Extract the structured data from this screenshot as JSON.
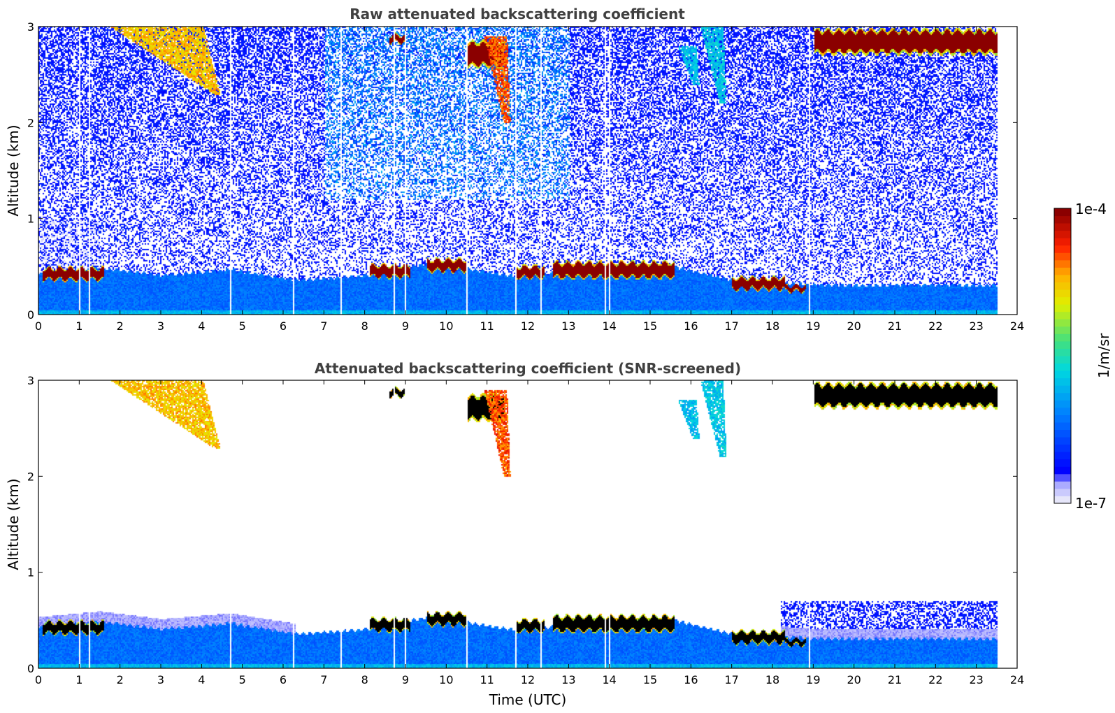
{
  "chart_data": {
    "type": "heatmap",
    "figure": "Ceilometer time-height backscatter plots",
    "panels": [
      {
        "id": "raw",
        "title": "Raw attenuated backscattering coefficient",
        "ylabel": "Altitude (km)",
        "xlabel": "",
        "xlim": [
          0,
          24
        ],
        "ylim": [
          0,
          3
        ],
        "xticks": [
          "0",
          "1",
          "2",
          "3",
          "4",
          "5",
          "6",
          "7",
          "8",
          "9",
          "10",
          "11",
          "12",
          "13",
          "14",
          "15",
          "16",
          "17",
          "18",
          "19",
          "20",
          "21",
          "22",
          "23",
          "24"
        ],
        "yticks": [
          "0",
          "1",
          "2",
          "3"
        ],
        "screened": false
      },
      {
        "id": "screened",
        "title": "Attenuated backscattering coefficient (SNR-screened)",
        "ylabel": "Altitude (km)",
        "xlabel": "Time (UTC)",
        "xlim": [
          0,
          24
        ],
        "ylim": [
          0,
          3
        ],
        "xticks": [
          "0",
          "1",
          "2",
          "3",
          "4",
          "5",
          "6",
          "7",
          "8",
          "9",
          "10",
          "11",
          "12",
          "13",
          "14",
          "15",
          "16",
          "17",
          "18",
          "19",
          "20",
          "21",
          "22",
          "23",
          "24"
        ],
        "yticks": [
          "0",
          "1",
          "2",
          "3"
        ],
        "screened": true
      }
    ],
    "data_end_hour": 23.5,
    "features": {
      "boundary_layer_top_km": [
        [
          0,
          0.42
        ],
        [
          1.5,
          0.48
        ],
        [
          3,
          0.4
        ],
        [
          4.7,
          0.46
        ],
        [
          6.3,
          0.35
        ],
        [
          7.5,
          0.38
        ],
        [
          8,
          0.4
        ],
        [
          9.5,
          0.52
        ],
        [
          10.5,
          0.47
        ],
        [
          11.5,
          0.4
        ],
        [
          12.5,
          0.42
        ],
        [
          13.5,
          0.48
        ],
        [
          15.5,
          0.5
        ],
        [
          16,
          0.45
        ],
        [
          17,
          0.35
        ],
        [
          18.3,
          0.32
        ],
        [
          19,
          0.3
        ],
        [
          23.5,
          0.3
        ]
      ],
      "cloud_layers": [
        {
          "t0": 0.1,
          "t1": 1.6,
          "z": 0.43,
          "thick": 0.12
        },
        {
          "t0": 8.1,
          "t1": 9.1,
          "z": 0.46,
          "thick": 0.12
        },
        {
          "t0": 9.5,
          "t1": 10.5,
          "z": 0.52,
          "thick": 0.12
        },
        {
          "t0": 11.7,
          "t1": 12.4,
          "z": 0.45,
          "thick": 0.12
        },
        {
          "t0": 12.6,
          "t1": 15.6,
          "z": 0.47,
          "thick": 0.16
        },
        {
          "t0": 17.0,
          "t1": 18.3,
          "z": 0.33,
          "thick": 0.12
        },
        {
          "t0": 18.3,
          "t1": 18.8,
          "z": 0.28,
          "thick": 0.06
        },
        {
          "t0": 10.5,
          "t1": 11.4,
          "z": 2.72,
          "thick": 0.26
        },
        {
          "t0": 8.6,
          "t1": 9.0,
          "z": 2.88,
          "thick": 0.08
        },
        {
          "t0": 19.0,
          "t1": 23.5,
          "z": 2.85,
          "thick": 0.25
        }
      ],
      "virga_streaks": [
        {
          "t0": 2.9,
          "t1": 5.0,
          "zTop": 3.0,
          "zBot": 2.3,
          "lvl": 0.75
        },
        {
          "t0": 11.2,
          "t1": 11.6,
          "zTop": 2.9,
          "zBot": 2.0,
          "lvl": 0.85
        },
        {
          "t0": 16.5,
          "t1": 16.9,
          "zTop": 3.0,
          "zBot": 2.2,
          "lvl": 0.42
        },
        {
          "t0": 15.9,
          "t1": 16.2,
          "zTop": 2.8,
          "zBot": 2.4,
          "lvl": 0.4
        }
      ],
      "gap_hours": [
        1.0,
        1.25,
        4.7,
        6.25,
        7.4,
        8.7,
        9.0,
        10.5,
        11.7,
        12.3,
        13.9,
        14.0,
        18.9
      ]
    },
    "colorbar": {
      "label": "1/m/sr",
      "max_label": "1e-4",
      "min_label": "1e-7",
      "vmin": 1e-07,
      "vmax": 0.0001,
      "scale": "log",
      "colormap": "jet",
      "saturated_color_screened": "#000000"
    }
  }
}
